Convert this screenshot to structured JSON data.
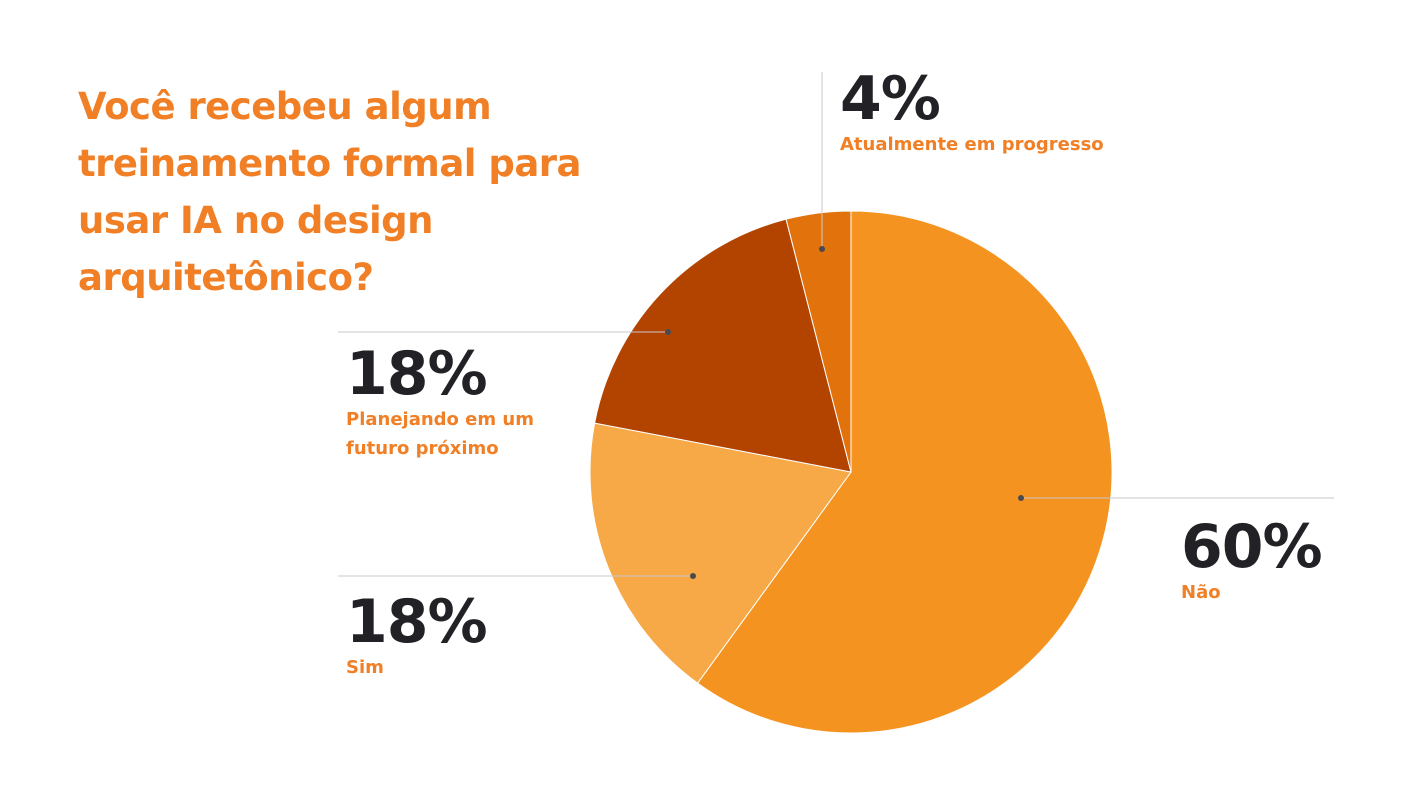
{
  "title": "Você recebeu algum treinamento formal para usar IA no design arquitetônico?",
  "chart_data": {
    "type": "pie",
    "title": "Você recebeu algum treinamento formal para usar IA no design arquitetônico?",
    "slices": [
      {
        "label": "Não",
        "value": 60,
        "display": "60%",
        "color": "#f59320"
      },
      {
        "label": "Sim",
        "value": 18,
        "display": "18%",
        "color": "#f7a847"
      },
      {
        "label": "Planejando em um futuro próximo",
        "value": 18,
        "display": "18%",
        "color": "#b34400"
      },
      {
        "label": "Atualmente em progresso",
        "value": 4,
        "display": "4%",
        "color": "#e2730c"
      }
    ],
    "start": "top",
    "direction": "clockwise"
  }
}
